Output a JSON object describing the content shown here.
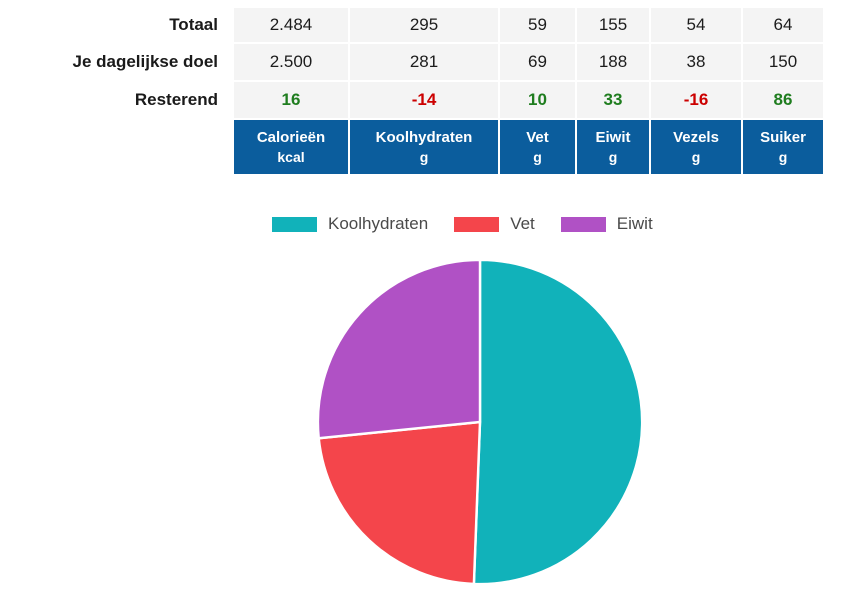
{
  "table": {
    "rows": [
      {
        "label": "Totaal",
        "values": [
          "2.484",
          "295",
          "59",
          "155",
          "54",
          "64"
        ]
      },
      {
        "label": "Je dagelijkse doel",
        "values": [
          "2.500",
          "281",
          "69",
          "188",
          "38",
          "150"
        ]
      },
      {
        "label": "Resterend",
        "values": [
          "16",
          "-14",
          "10",
          "33",
          "-16",
          "86"
        ]
      }
    ],
    "columns": [
      {
        "name": "Calorieën",
        "unit": "kcal"
      },
      {
        "name": "Koolhydraten",
        "unit": "g"
      },
      {
        "name": "Vet",
        "unit": "g"
      },
      {
        "name": "Eiwit",
        "unit": "g"
      },
      {
        "name": "Vezels",
        "unit": "g"
      },
      {
        "name": "Suiker",
        "unit": "g"
      }
    ]
  },
  "colors": {
    "header_bg": "#0b5d9d",
    "positive": "#1f7d1f",
    "negative": "#cc0000",
    "cell_bg": "#f4f4f4"
  },
  "chart_data": {
    "type": "pie",
    "title": "",
    "legend_position": "top",
    "slices": [
      {
        "label": "Koolhydraten",
        "percent": 50.6,
        "color": "#11b2ba"
      },
      {
        "label": "Vet",
        "percent": 22.8,
        "color": "#f4454b"
      },
      {
        "label": "Eiwit",
        "percent": 26.6,
        "color": "#b051c5"
      }
    ]
  }
}
